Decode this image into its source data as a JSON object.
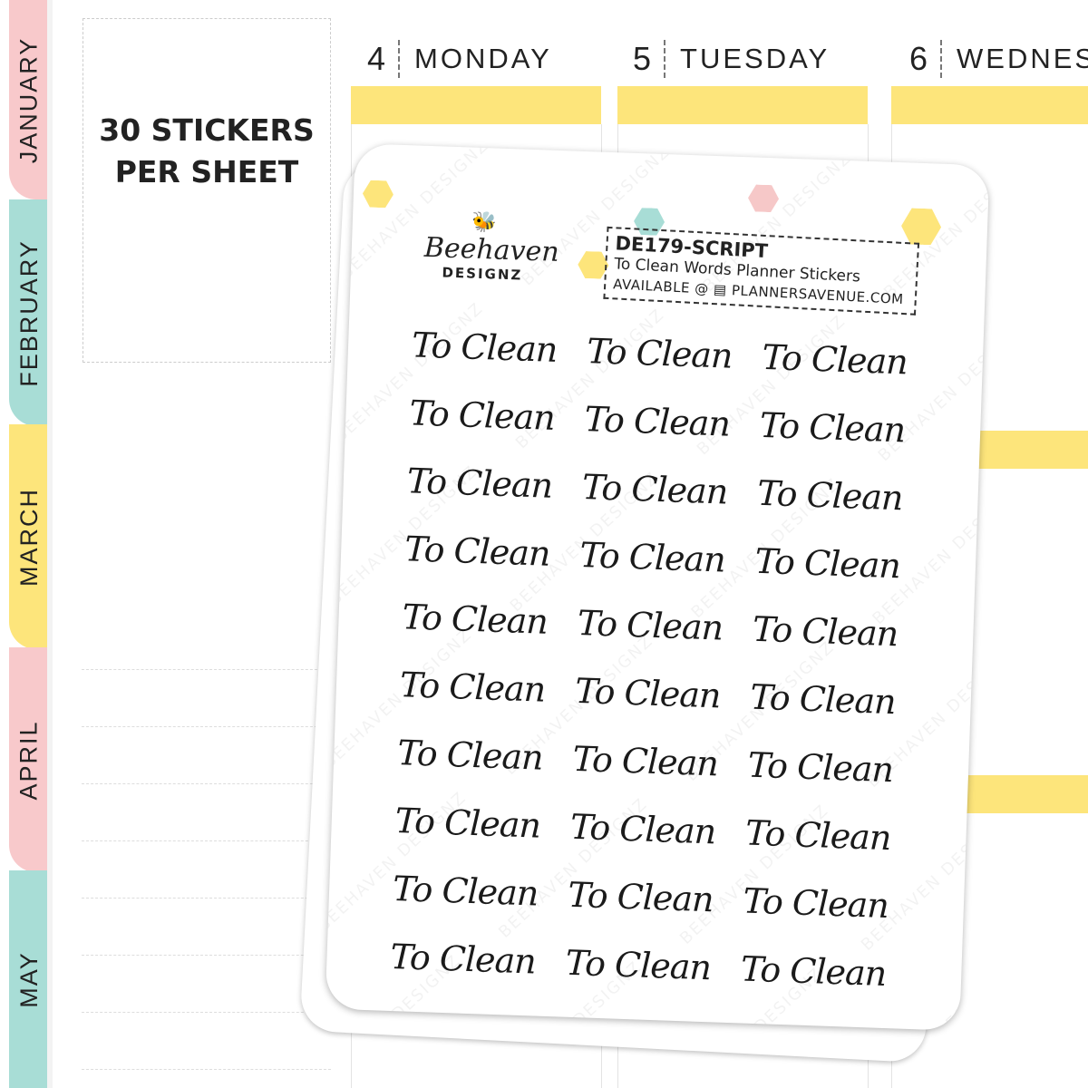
{
  "tabs": [
    {
      "label": "JANUARY",
      "color": "#f8c9cb"
    },
    {
      "label": "FEBRUARY",
      "color": "#a8ddd6"
    },
    {
      "label": "MARCH",
      "color": "#fde57b"
    },
    {
      "label": "APRIL",
      "color": "#f8c9cb"
    },
    {
      "label": "MAY",
      "color": "#a8ddd6"
    }
  ],
  "info_box": {
    "line1": "30 STICKERS",
    "line2": "PER SHEET"
  },
  "days": [
    {
      "num": "4",
      "name": "MONDAY"
    },
    {
      "num": "5",
      "name": "TUESDAY"
    },
    {
      "num": "6",
      "name": "WEDNESDAY"
    }
  ],
  "sheet": {
    "logo": {
      "script": "Beehaven",
      "sub": "DESIGNZ"
    },
    "watermark": "BEEHAVEN DESIGNZ",
    "code": "DE179-SCRIPT",
    "title": "To Clean Words Planner Stickers",
    "available": "AVAILABLE @",
    "shop_icon": "shop-icon",
    "site": "PLANNERSAVENUE.COM",
    "sticker_text": "To Clean",
    "sticker_count": 30
  },
  "colors": {
    "pink": "#f8c9cb",
    "teal": "#a8ddd6",
    "yellow": "#fde57b"
  }
}
